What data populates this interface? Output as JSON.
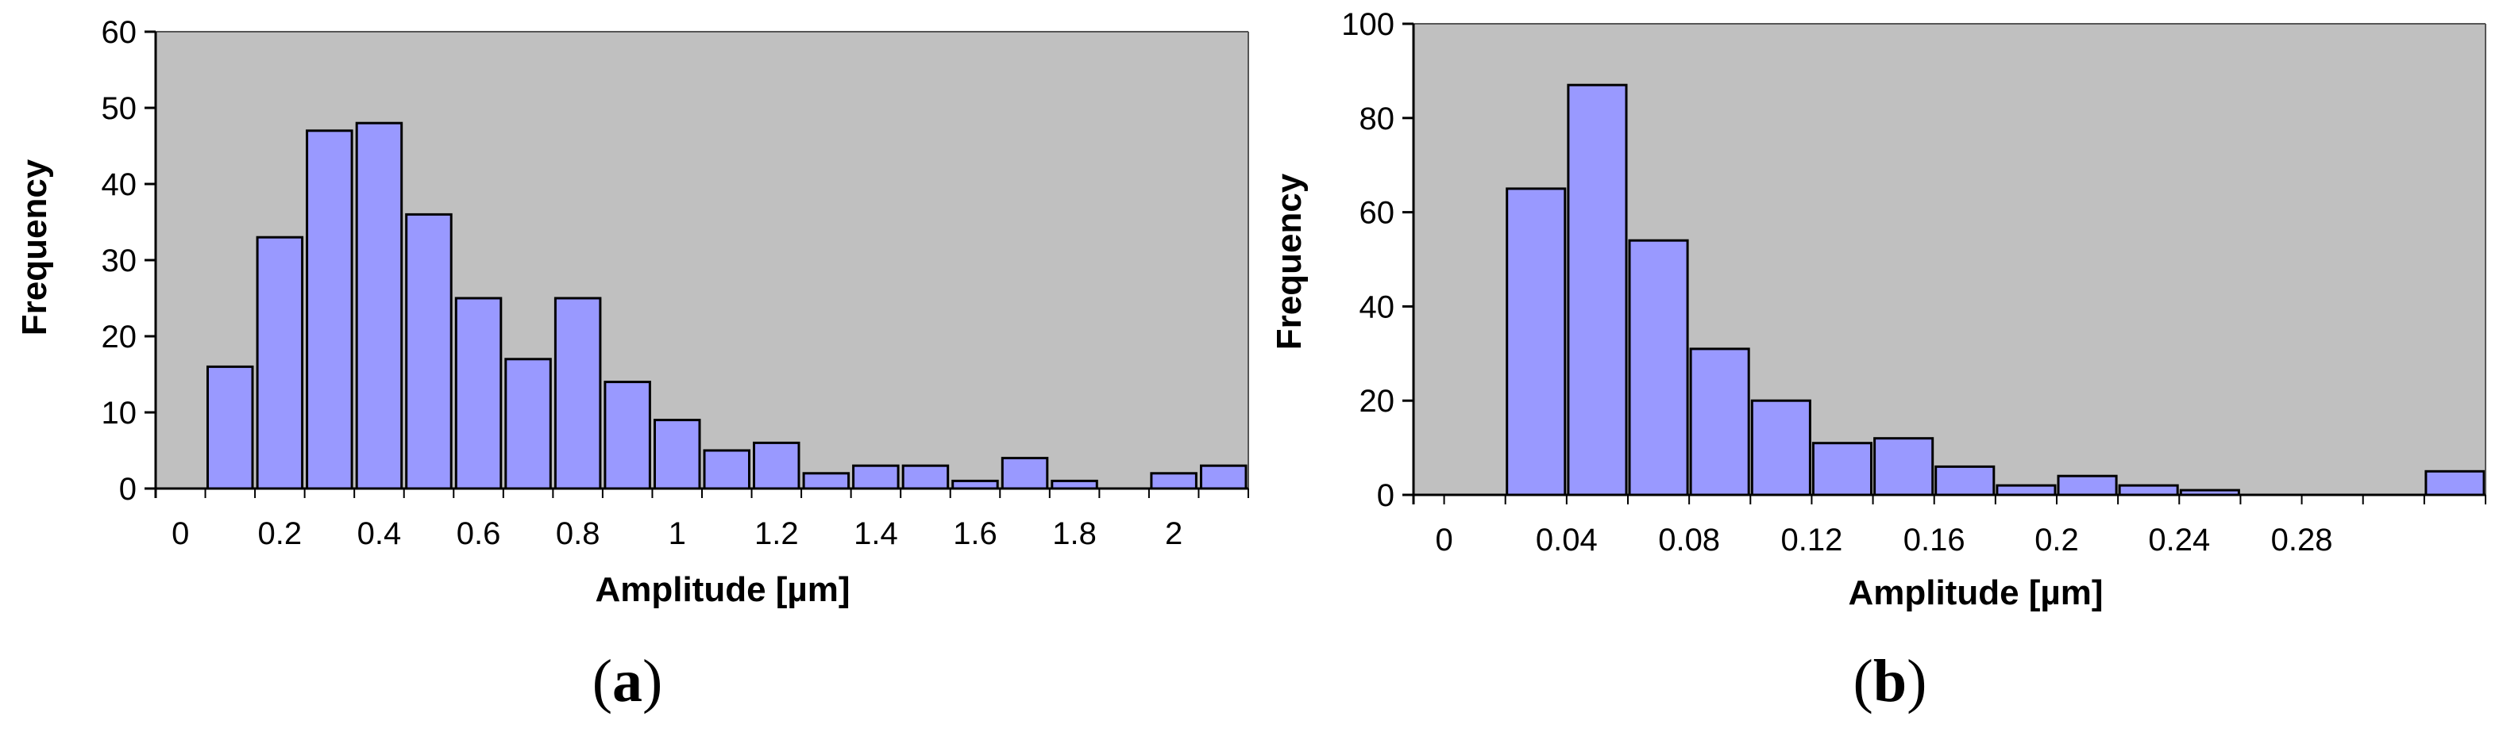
{
  "chart_data": [
    {
      "type": "bar",
      "panel_label": "a",
      "xlabel": "Amplitude [µm]",
      "ylabel": "Frequency",
      "ylim": [
        0,
        60
      ],
      "yticks": [
        "0",
        "10",
        "20",
        "30",
        "40",
        "50",
        "60"
      ],
      "xlim": [
        -0.05,
        2.15
      ],
      "xticks": [
        {
          "value": 0,
          "label": "0"
        },
        {
          "value": 0.2,
          "label": "0.2"
        },
        {
          "value": 0.4,
          "label": "0.4"
        },
        {
          "value": 0.6,
          "label": "0.6"
        },
        {
          "value": 0.8,
          "label": "0.8"
        },
        {
          "value": 1.0,
          "label": "1"
        },
        {
          "value": 1.2,
          "label": "1.2"
        },
        {
          "value": 1.4,
          "label": "1.4"
        },
        {
          "value": 1.6,
          "label": "1.6"
        },
        {
          "value": 1.8,
          "label": "1.8"
        },
        {
          "value": 2.0,
          "label": "2"
        }
      ],
      "bin_width": 0.1,
      "bin_centers": [
        0.1,
        0.2,
        0.3,
        0.4,
        0.5,
        0.6,
        0.7,
        0.8,
        0.9,
        1.0,
        1.1,
        1.2,
        1.3,
        1.4,
        1.5,
        1.6,
        1.7,
        1.8,
        1.9,
        2.0,
        2.1
      ],
      "values": [
        16,
        33,
        47,
        48,
        36,
        25,
        17,
        25,
        14,
        9,
        5,
        6,
        2,
        3,
        3,
        1,
        4,
        1,
        0,
        2,
        3
      ],
      "grid": false,
      "colors": {
        "plot_bg": "#c0c0c0",
        "bar_fill": "#9999ff",
        "bar_edge": "#000000"
      }
    },
    {
      "type": "bar",
      "panel_label": "b",
      "xlabel": "Amplitude [µm]",
      "ylabel": "Frequency",
      "ylim": [
        0,
        100
      ],
      "yticks": [
        "0",
        "20",
        "40",
        "60",
        "80",
        "100"
      ],
      "xlim": [
        -0.01,
        0.34
      ],
      "xticks": [
        {
          "value": 0,
          "label": "0"
        },
        {
          "value": 0.04,
          "label": "0.04"
        },
        {
          "value": 0.08,
          "label": "0.08"
        },
        {
          "value": 0.12,
          "label": "0.12"
        },
        {
          "value": 0.16,
          "label": "0.16"
        },
        {
          "value": 0.2,
          "label": "0.2"
        },
        {
          "value": 0.24,
          "label": "0.24"
        },
        {
          "value": 0.28,
          "label": "0.28"
        }
      ],
      "bin_width": 0.02,
      "bin_centers": [
        0.03,
        0.05,
        0.07,
        0.09,
        0.11,
        0.13,
        0.15,
        0.17,
        0.19,
        0.21,
        0.23,
        0.25,
        0.27,
        0.29,
        0.31,
        0.33
      ],
      "values": [
        65,
        87,
        54,
        31,
        20,
        11,
        12,
        6,
        2,
        4,
        2,
        1,
        0,
        0,
        0,
        5
      ],
      "grid": false,
      "colors": {
        "plot_bg": "#c0c0c0",
        "bar_fill": "#9999ff",
        "bar_edge": "#000000"
      }
    }
  ]
}
